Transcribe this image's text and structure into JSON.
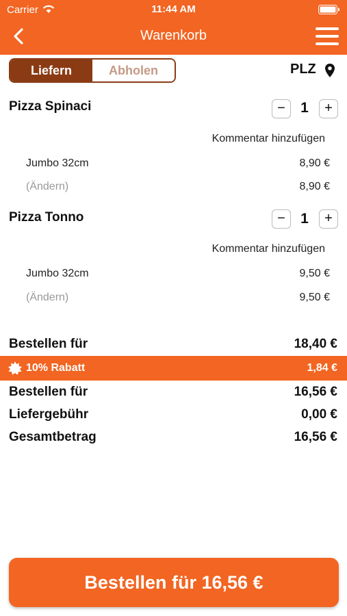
{
  "status": {
    "carrier": "Carrier",
    "time": "11:44 AM"
  },
  "nav": {
    "title": "Warenkorb"
  },
  "mode": {
    "deliver": "Liefern",
    "pickup": "Abholen",
    "plz": "PLZ"
  },
  "cart": {
    "items": [
      {
        "name": "Pizza Spinaci",
        "qty": "1",
        "comment": "Kommentar hinzufügen",
        "option": "Jumbo 32cm",
        "option_price": "8,90 €",
        "change": "(Ändern)",
        "total": "8,90 €"
      },
      {
        "name": "Pizza Tonno",
        "qty": "1",
        "comment": "Kommentar hinzufügen",
        "option": "Jumbo 32cm",
        "option_price": "9,50 €",
        "change": "(Ändern)",
        "total": "9,50 €"
      }
    ]
  },
  "summary": {
    "subtotal_label": "Bestellen für",
    "subtotal": "18,40 €",
    "discount_label": "10% Rabatt",
    "discount": "1,84 €",
    "after_label": "Bestellen für",
    "after": "16,56 €",
    "fee_label": "Liefergebühr",
    "fee": "0,00 €",
    "total_label": "Gesamtbetrag",
    "total": "16,56 €"
  },
  "order_button": "Bestellen für 16,56 €",
  "colors": {
    "accent": "#f26522",
    "segment_active": "#8b3b14"
  }
}
